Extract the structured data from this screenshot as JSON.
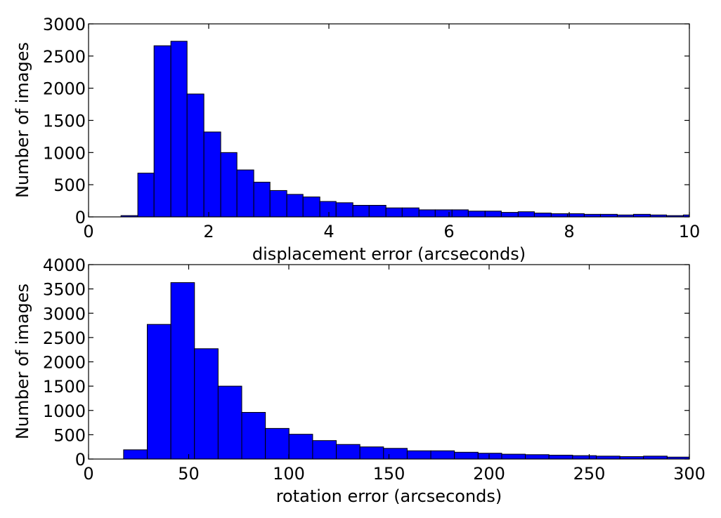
{
  "chart_data": [
    {
      "type": "bar",
      "histogram": true,
      "xlabel": "displacement error (arcseconds)",
      "ylabel": "Number of images",
      "xlim": [
        0,
        10
      ],
      "ylim": [
        0,
        3000
      ],
      "xticks": [
        0,
        2,
        4,
        6,
        8,
        10
      ],
      "yticks": [
        0,
        500,
        1000,
        1500,
        2000,
        2500,
        3000
      ],
      "color": "#0000ff",
      "bin_edges": [
        0.54,
        0.82,
        1.09,
        1.37,
        1.64,
        1.92,
        2.2,
        2.47,
        2.75,
        3.02,
        3.3,
        3.57,
        3.85,
        4.12,
        4.4,
        4.67,
        4.95,
        5.22,
        5.5,
        5.77,
        6.05,
        6.32,
        6.6,
        6.87,
        7.15,
        7.42,
        7.7,
        7.97,
        8.25,
        8.52,
        8.8,
        9.07,
        9.35,
        9.62,
        9.9,
        10.0
      ],
      "values": [
        20,
        680,
        2660,
        2730,
        1910,
        1320,
        1000,
        730,
        540,
        410,
        350,
        310,
        240,
        220,
        180,
        180,
        140,
        140,
        110,
        110,
        110,
        90,
        90,
        70,
        80,
        60,
        50,
        50,
        40,
        40,
        30,
        40,
        30,
        20,
        30
      ]
    },
    {
      "type": "bar",
      "histogram": true,
      "xlabel": "rotation error (arcseconds)",
      "ylabel": "Number of images",
      "xlim": [
        0,
        300
      ],
      "ylim": [
        0,
        4000
      ],
      "xticks": [
        0,
        50,
        100,
        150,
        200,
        250,
        300
      ],
      "yticks": [
        0,
        500,
        1000,
        1500,
        2000,
        2500,
        3000,
        3500,
        4000
      ],
      "color": "#0000ff",
      "bin_edges": [
        17.5,
        29.3,
        41.1,
        52.9,
        64.7,
        76.5,
        88.3,
        100.1,
        111.9,
        123.7,
        135.5,
        147.3,
        159.1,
        170.9,
        182.7,
        194.5,
        206.3,
        218.1,
        229.9,
        241.7,
        253.5,
        265.3,
        277.1,
        288.9,
        300.0
      ],
      "values": [
        190,
        2770,
        3630,
        2270,
        1500,
        960,
        630,
        510,
        380,
        300,
        250,
        220,
        170,
        170,
        140,
        120,
        100,
        90,
        80,
        70,
        60,
        50,
        60,
        40
      ]
    }
  ]
}
